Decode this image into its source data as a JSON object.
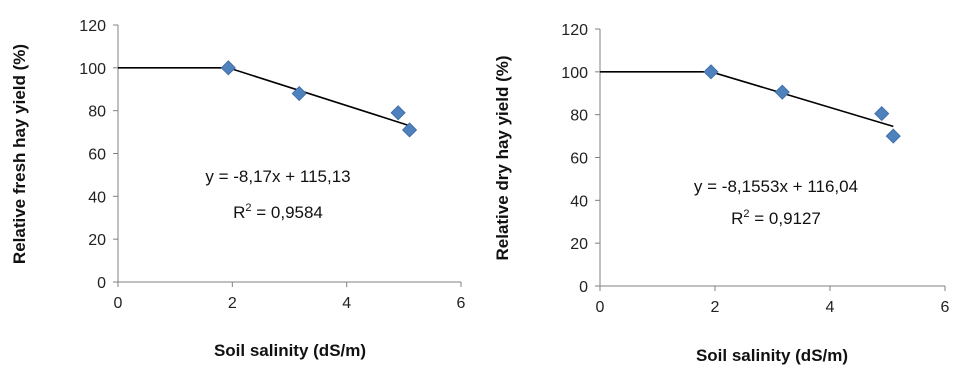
{
  "chart_data": [
    {
      "type": "scatter",
      "xlabel": "Soil salinity (dS/m)",
      "ylabel": "Relative fresh hay yield  (%)",
      "xlim": [
        0,
        6
      ],
      "ylim": [
        0,
        120
      ],
      "x_ticks": [
        0,
        2,
        4,
        6
      ],
      "y_ticks": [
        0,
        20,
        40,
        60,
        80,
        100,
        120
      ],
      "grid": false,
      "marker_color": "#4f81bd",
      "points": [
        {
          "x": 1.93,
          "y": 100
        },
        {
          "x": 3.17,
          "y": 88
        },
        {
          "x": 4.9,
          "y": 79
        },
        {
          "x": 5.1,
          "y": 71
        }
      ],
      "fit_line": [
        {
          "x": 0,
          "y": 100
        },
        {
          "x": 1.93,
          "y": 100
        },
        {
          "x": 5.1,
          "y": 73
        }
      ],
      "equation": "y = -8,17x + 115,13",
      "r2": {
        "label": "R",
        "sup": "2",
        "value": " = 0,9584"
      }
    },
    {
      "type": "scatter",
      "xlabel": "Soil salinity (dS/m)",
      "ylabel": "Relative dry hay yield (%)",
      "xlim": [
        0,
        6
      ],
      "ylim": [
        0,
        120
      ],
      "x_ticks": [
        0,
        2,
        4,
        6
      ],
      "y_ticks": [
        0,
        20,
        40,
        60,
        80,
        100,
        120
      ],
      "grid": false,
      "marker_color": "#4f81bd",
      "points": [
        {
          "x": 1.93,
          "y": 100
        },
        {
          "x": 3.17,
          "y": 90.5
        },
        {
          "x": 4.9,
          "y": 80.5
        },
        {
          "x": 5.1,
          "y": 70
        }
      ],
      "fit_line": [
        {
          "x": 0,
          "y": 100
        },
        {
          "x": 1.93,
          "y": 100
        },
        {
          "x": 5.1,
          "y": 74.5
        }
      ],
      "equation": "y = -8,1553x + 116,04",
      "r2": {
        "label": "R",
        "sup": "2",
        "value": " = 0,9127"
      }
    }
  ]
}
